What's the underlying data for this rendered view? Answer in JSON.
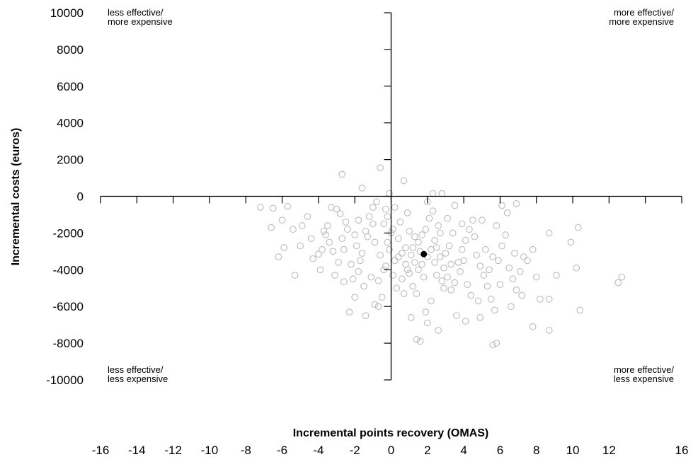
{
  "chart_data": {
    "type": "scatter",
    "title": "",
    "xlabel": "Incremental points recovery (OMAS)",
    "ylabel": "Incremental costs (euros)",
    "xlim": [
      -16,
      16
    ],
    "ylim": [
      -10000,
      10000
    ],
    "x_ticks": [
      -16,
      -14,
      -12,
      -10,
      -8,
      -6,
      -4,
      -2,
      0,
      2,
      4,
      6,
      8,
      10,
      12,
      16
    ],
    "y_ticks": [
      10000,
      8000,
      6000,
      4000,
      2000,
      0,
      -2000,
      -4000,
      -6000,
      -8000,
      -10000
    ],
    "quadrant_labels": {
      "top_left": [
        "less effective/",
        "more expensive"
      ],
      "top_right": [
        "more effective/",
        "more expensive"
      ],
      "bottom_left": [
        "less effective/",
        "less expensive"
      ],
      "bottom_right": [
        "more effective/",
        "less expensive"
      ]
    },
    "point_color": "#bbbbbb",
    "mean_point": {
      "x": 1.8,
      "y": -3150,
      "color": "#000000"
    },
    "points": [
      [
        -2.7,
        1200
      ],
      [
        -0.6,
        1550
      ],
      [
        0.7,
        850
      ],
      [
        -1.6,
        450
      ],
      [
        2.3,
        150
      ],
      [
        2.8,
        150
      ],
      [
        -0.1,
        150
      ],
      [
        -7.2,
        -600
      ],
      [
        -6.5,
        -650
      ],
      [
        -5.7,
        -550
      ],
      [
        -6.0,
        -1300
      ],
      [
        -6.6,
        -1700
      ],
      [
        -5.4,
        -1800
      ],
      [
        -4.6,
        -1100
      ],
      [
        -4.9,
        -1600
      ],
      [
        -6.2,
        -3300
      ],
      [
        -5.9,
        -2800
      ],
      [
        -5.3,
        -4300
      ],
      [
        -4.3,
        -3400
      ],
      [
        -4.0,
        -3150
      ],
      [
        -3.8,
        -2900
      ],
      [
        -3.6,
        -2100
      ],
      [
        -3.5,
        -1600
      ],
      [
        -3.3,
        -600
      ],
      [
        -3.0,
        -700
      ],
      [
        -2.8,
        -950
      ],
      [
        -2.5,
        -1400
      ],
      [
        -2.6,
        -2900
      ],
      [
        -2.9,
        -3600
      ],
      [
        -3.1,
        -4300
      ],
      [
        -2.6,
        -4650
      ],
      [
        -2.3,
        -6300
      ],
      [
        -2.0,
        -5500
      ],
      [
        -1.8,
        -4100
      ],
      [
        -1.6,
        -3100
      ],
      [
        -1.4,
        -1900
      ],
      [
        -1.2,
        -1100
      ],
      [
        -1.0,
        -600
      ],
      [
        -0.8,
        -300
      ],
      [
        -1.4,
        -6500
      ],
      [
        -0.9,
        -5900
      ],
      [
        -0.5,
        -5500
      ],
      [
        -0.7,
        -4600
      ],
      [
        -0.3,
        -3800
      ],
      [
        -0.1,
        -2900
      ],
      [
        0.0,
        -2000
      ],
      [
        -0.2,
        -1100
      ],
      [
        0.2,
        -600
      ],
      [
        0.4,
        -2300
      ],
      [
        0.6,
        -3100
      ],
      [
        0.8,
        -3700
      ],
      [
        1.0,
        -4200
      ],
      [
        1.2,
        -4900
      ],
      [
        1.4,
        -5300
      ],
      [
        1.1,
        -6600
      ],
      [
        1.5,
        -2500
      ],
      [
        1.7,
        -2100
      ],
      [
        1.9,
        -1800
      ],
      [
        2.1,
        -1200
      ],
      [
        2.3,
        -800
      ],
      [
        2.5,
        -2800
      ],
      [
        2.7,
        -3300
      ],
      [
        2.9,
        -3900
      ],
      [
        3.1,
        -4400
      ],
      [
        3.3,
        -5100
      ],
      [
        3.5,
        -4700
      ],
      [
        3.7,
        -3600
      ],
      [
        3.9,
        -2900
      ],
      [
        4.1,
        -2400
      ],
      [
        4.3,
        -1800
      ],
      [
        4.5,
        -1300
      ],
      [
        4.7,
        -3200
      ],
      [
        4.9,
        -3800
      ],
      [
        5.1,
        -4300
      ],
      [
        5.3,
        -4900
      ],
      [
        5.5,
        -5600
      ],
      [
        5.7,
        -6200
      ],
      [
        5.9,
        -3500
      ],
      [
        6.1,
        -2700
      ],
      [
        6.3,
        -2100
      ],
      [
        6.5,
        -3900
      ],
      [
        6.7,
        -4500
      ],
      [
        6.9,
        -5100
      ],
      [
        7.1,
        -4100
      ],
      [
        7.3,
        -3300
      ],
      [
        7.5,
        -3500
      ],
      [
        7.8,
        -2900
      ],
      [
        1.4,
        -7800
      ],
      [
        1.6,
        -7900
      ],
      [
        2.0,
        -6900
      ],
      [
        2.6,
        -7300
      ],
      [
        4.1,
        -6800
      ],
      [
        4.9,
        -6600
      ],
      [
        5.8,
        -8000
      ],
      [
        5.6,
        -8100
      ],
      [
        7.8,
        -7100
      ],
      [
        8.7,
        -7300
      ],
      [
        8.7,
        -5600
      ],
      [
        8.2,
        -5600
      ],
      [
        8.0,
        -4400
      ],
      [
        9.1,
        -4300
      ],
      [
        8.7,
        -2000
      ],
      [
        9.9,
        -2500
      ],
      [
        10.3,
        -1700
      ],
      [
        10.2,
        -3900
      ],
      [
        10.4,
        -6200
      ],
      [
        12.5,
        -4700
      ],
      [
        12.7,
        -4400
      ],
      [
        5.0,
        -1300
      ],
      [
        5.8,
        -1600
      ],
      [
        6.1,
        -500
      ],
      [
        6.9,
        -400
      ],
      [
        6.4,
        -900
      ],
      [
        3.5,
        -500
      ],
      [
        2.0,
        -300
      ],
      [
        3.1,
        -1200
      ],
      [
        -0.4,
        -1500
      ],
      [
        0.8,
        -2800
      ],
      [
        -1.9,
        -2700
      ],
      [
        -2.2,
        -3700
      ],
      [
        -1.1,
        -4400
      ],
      [
        0.3,
        -5000
      ],
      [
        2.2,
        -5700
      ],
      [
        4.4,
        -5400
      ],
      [
        6.6,
        -6000
      ],
      [
        -0.6,
        -3200
      ],
      [
        1.3,
        -3600
      ],
      [
        3.2,
        -2700
      ],
      [
        5.2,
        -2900
      ],
      [
        -3.4,
        -2500
      ],
      [
        -4.4,
        -2300
      ],
      [
        -2.0,
        -2100
      ],
      [
        0.5,
        -1400
      ],
      [
        1.8,
        -4400
      ],
      [
        3.6,
        -6500
      ],
      [
        -1.5,
        -4900
      ],
      [
        0.1,
        -4300
      ],
      [
        2.4,
        -3600
      ],
      [
        4.0,
        -3500
      ],
      [
        6.0,
        -4800
      ],
      [
        7.2,
        -5400
      ],
      [
        -0.9,
        -2500
      ],
      [
        1.0,
        -1900
      ],
      [
        2.6,
        -1600
      ],
      [
        4.6,
        -2200
      ],
      [
        -2.4,
        -1800
      ],
      [
        -0.3,
        -700
      ],
      [
        0.9,
        -900
      ],
      [
        3.8,
        -4100
      ],
      [
        5.4,
        -4000
      ],
      [
        6.8,
        -3100
      ],
      [
        -5.0,
        -2700
      ],
      [
        -3.9,
        -4000
      ],
      [
        -1.7,
        -3500
      ],
      [
        0.6,
        -4500
      ],
      [
        2.9,
        -5000
      ],
      [
        4.8,
        -5700
      ],
      [
        1.6,
        -3000
      ],
      [
        2.0,
        -3300
      ],
      [
        1.2,
        -2800
      ],
      [
        2.4,
        -2400
      ],
      [
        0.2,
        -3500
      ],
      [
        1.5,
        -4000
      ],
      [
        -0.4,
        -4000
      ],
      [
        3.0,
        -3100
      ],
      [
        3.4,
        -2000
      ],
      [
        -1.0,
        -1500
      ],
      [
        0.7,
        -5300
      ],
      [
        2.8,
        -4600
      ],
      [
        4.2,
        -4800
      ],
      [
        5.6,
        -3300
      ],
      [
        -2.1,
        -4500
      ],
      [
        -3.2,
        -3000
      ],
      [
        -0.7,
        -6000
      ],
      [
        1.9,
        -6300
      ],
      [
        0.4,
        -3300
      ],
      [
        1.1,
        -3200
      ],
      [
        2.2,
        -2900
      ],
      [
        1.7,
        -3700
      ],
      [
        0.9,
        -4000
      ],
      [
        2.5,
        -4300
      ],
      [
        3.3,
        -3700
      ],
      [
        -0.2,
        -2500
      ],
      [
        0.1,
        -1800
      ],
      [
        1.3,
        -2200
      ],
      [
        2.7,
        -2000
      ],
      [
        3.9,
        -1500
      ],
      [
        -1.3,
        -2200
      ],
      [
        -2.7,
        -2300
      ],
      [
        -3.7,
        -1900
      ],
      [
        -1.8,
        -1300
      ]
    ]
  }
}
